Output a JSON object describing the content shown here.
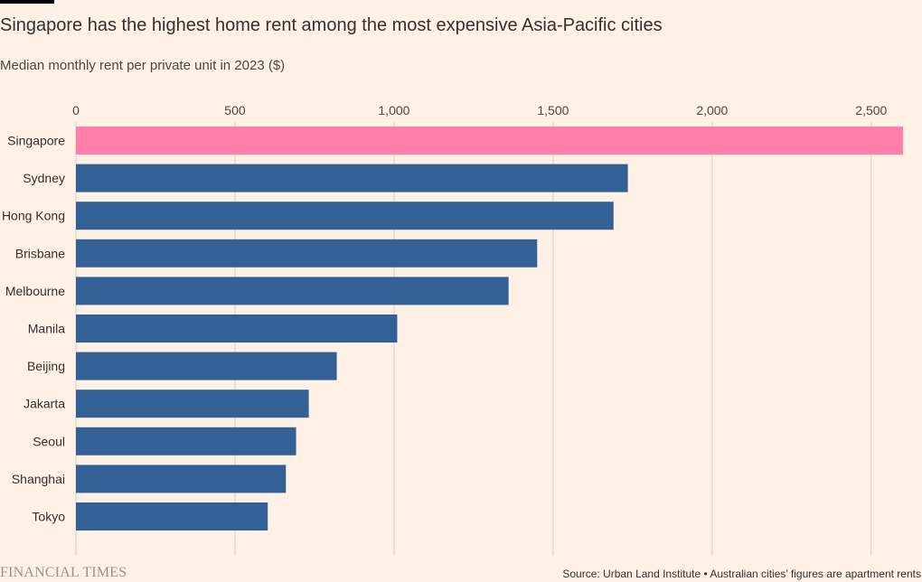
{
  "header": {
    "title": "Singapore has the highest home rent among the most expensive Asia-Pacific cities",
    "subtitle": "Median monthly rent per private unit in 2023 ($)"
  },
  "footer": {
    "logo_text": "FINANCIAL TIMES",
    "source": "Source: Urban Land Institute • Australian cities’ figures are apartment rents"
  },
  "colors": {
    "background": "#FFF1E5",
    "highlight_bar": "#FF7FAA",
    "bar": "#336095",
    "gridline": "#D9CCC1",
    "text": "#33302E"
  },
  "chart_data": {
    "type": "bar",
    "orientation": "horizontal",
    "title": "Singapore has the highest home rent among the most expensive Asia-Pacific cities",
    "subtitle": "Median monthly rent per private unit in 2023 ($)",
    "xlabel": "",
    "ylabel": "",
    "xlim": [
      0,
      2600
    ],
    "x_ticks": [
      0,
      500,
      1000,
      1500,
      2000,
      2500
    ],
    "x_tick_labels": [
      "0",
      "500",
      "1,000",
      "1,500",
      "2,000",
      "2,500"
    ],
    "x_axis_position": "top",
    "grid": true,
    "categories": [
      "Singapore",
      "Sydney",
      "Hong Kong",
      "Brisbane",
      "Melbourne",
      "Manila",
      "Beijing",
      "Jakarta",
      "Seoul",
      "Shanghai",
      "Tokyo"
    ],
    "values": [
      2600,
      1735,
      1690,
      1450,
      1360,
      1010,
      820,
      732,
      692,
      660,
      603
    ],
    "highlight": "Singapore"
  }
}
